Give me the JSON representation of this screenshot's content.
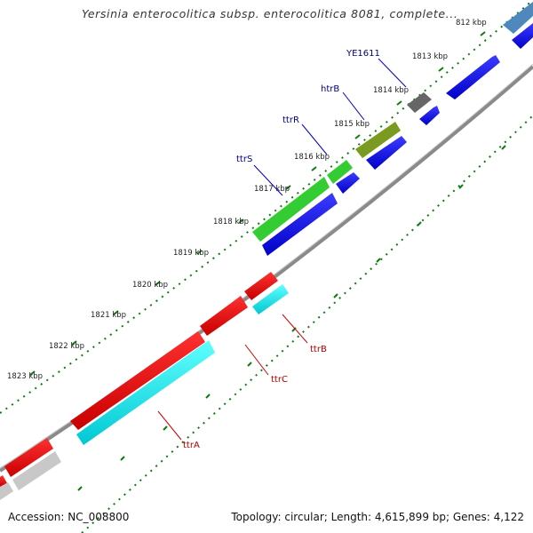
{
  "title": "Yersinia enterocolitica subsp. enterocolitica 8081, complete...",
  "accession": "Accession: NC_008800",
  "summary": "Topology: circular; Length: 4,615,899 bp; Genes: 4,122",
  "kbp_labels": [
    "812 kbp",
    "1813 kbp",
    "1814 kbp",
    "1815 kbp",
    "1816 kbp",
    "1817 kbp",
    "1818 kbp",
    "1819 kbp",
    "1820 kbp",
    "1821 kbp",
    "1822 kbp",
    "1823 kbp"
  ],
  "genes_outer": [
    {
      "name": "YE1611",
      "color": "#000080"
    },
    {
      "name": "htrB",
      "color": "#000080"
    },
    {
      "name": "ttrR",
      "color": "#000080"
    },
    {
      "name": "ttrS",
      "color": "#000080"
    }
  ],
  "genes_inner": [
    {
      "name": "ttrB",
      "color": "#b00000"
    },
    {
      "name": "ttrC",
      "color": "#b00000"
    },
    {
      "name": "ttrA",
      "color": "#b00000"
    }
  ],
  "colors": {
    "backbone": "#8a8a8a",
    "tick": "#107a10",
    "cds_forward_blue": "#0000ee",
    "rna_green": "#33cc33",
    "olive": "#7a9a20",
    "gray_gene": "#666666",
    "steel_blue": "#4f88bd",
    "ttr_red": "#ee0000",
    "ttr_cyan": "#00eeee",
    "light_gray": "#c8c8c8"
  }
}
